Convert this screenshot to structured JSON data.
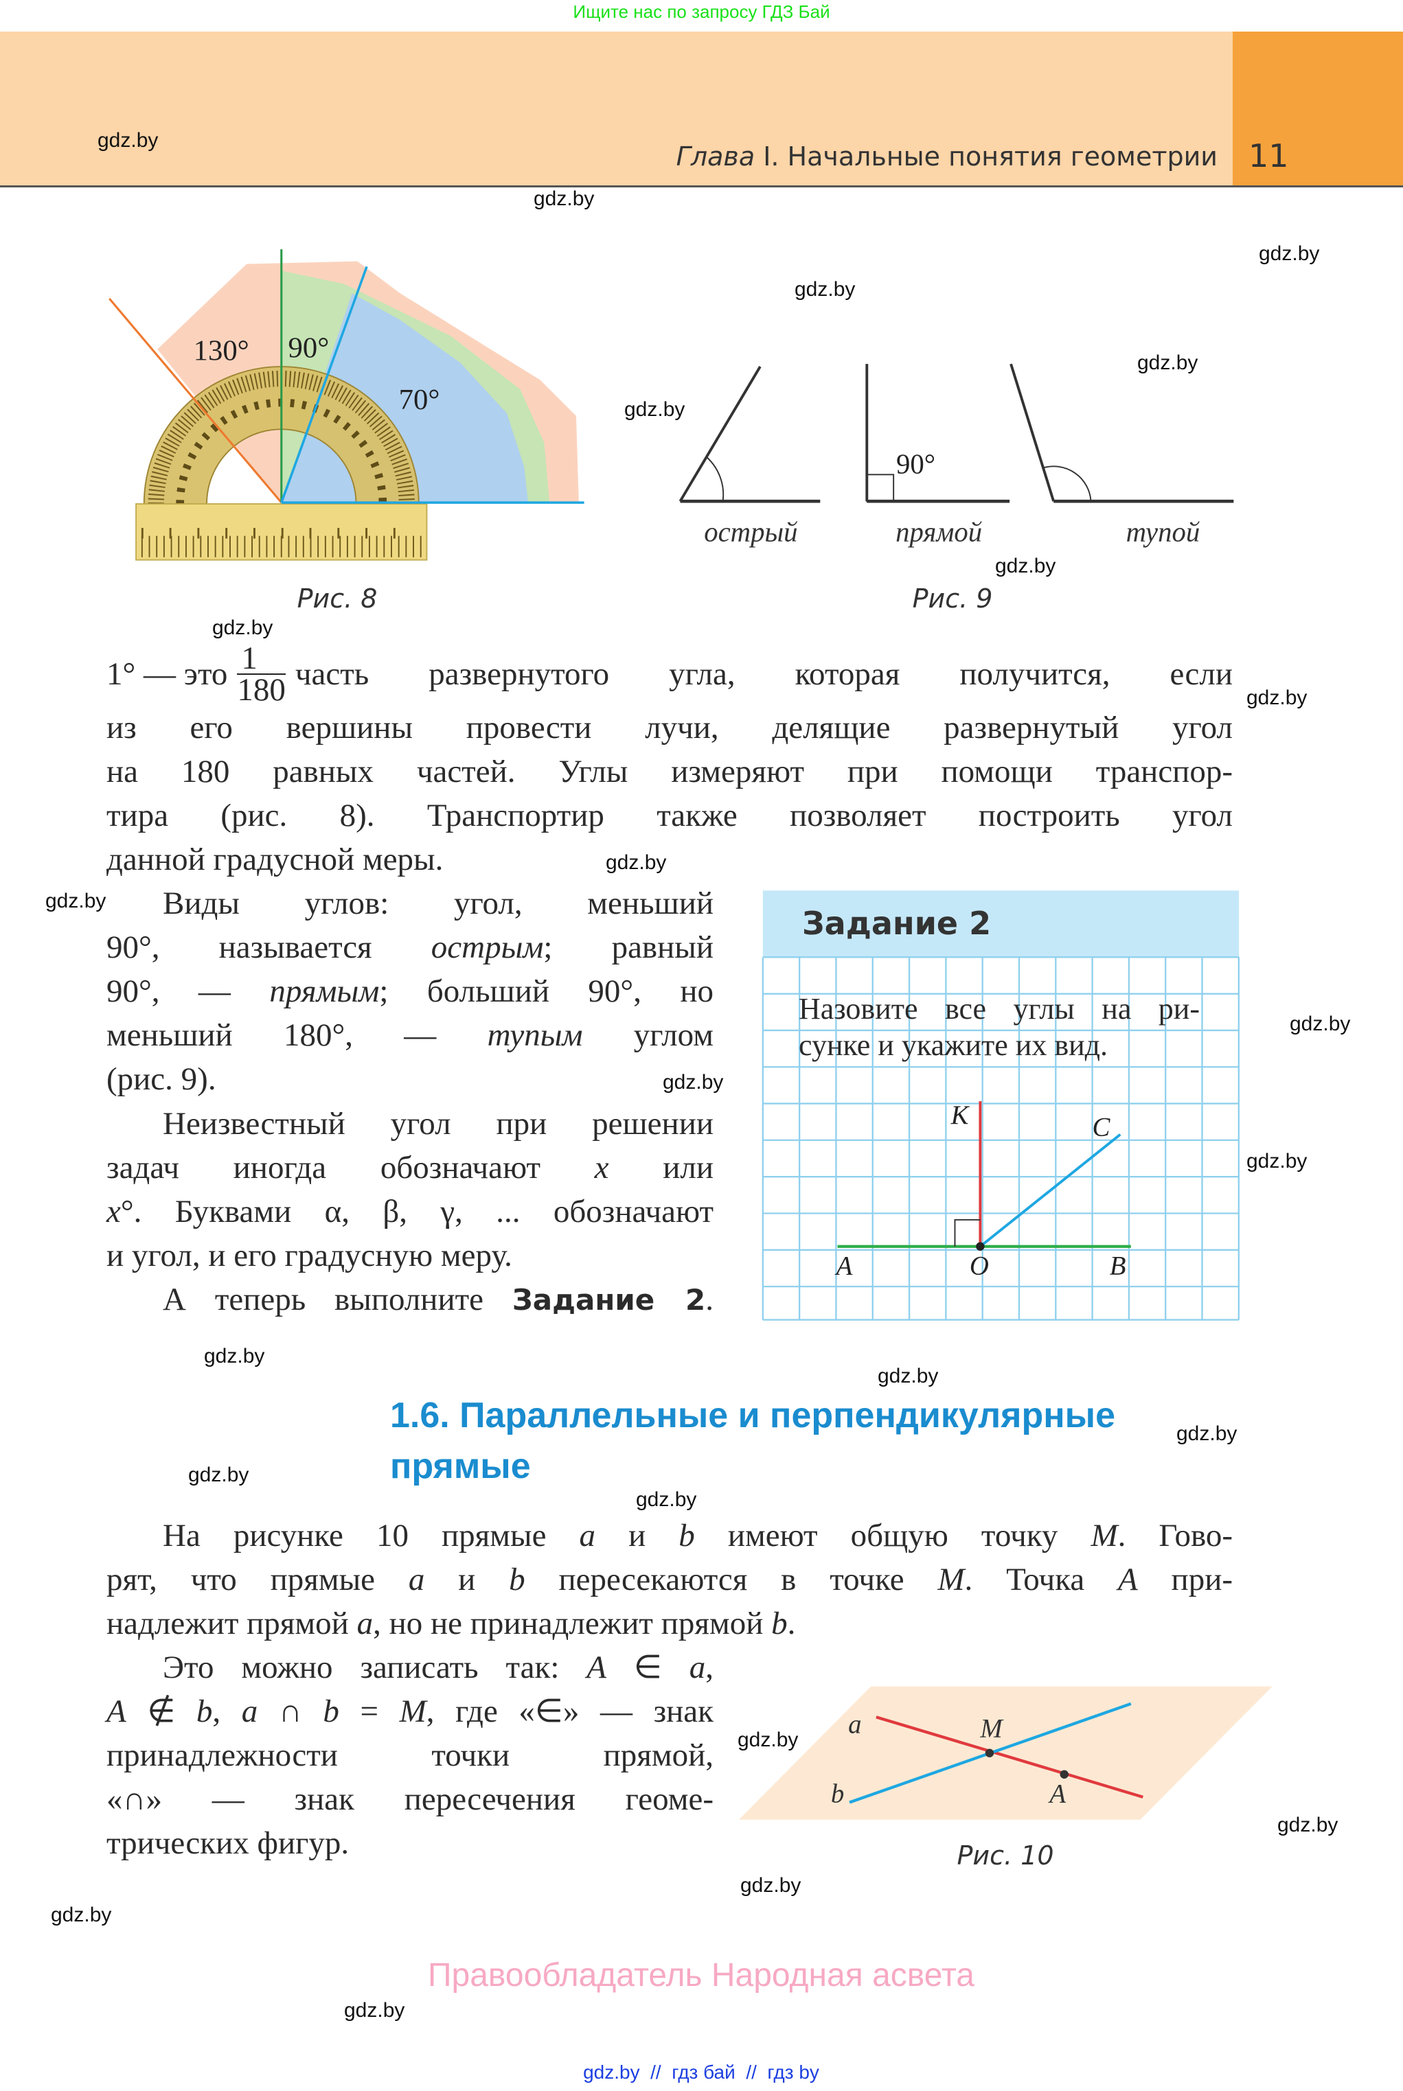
{
  "top_banner": "Ищите нас по запросу ГДЗ Бай",
  "header": {
    "chapter_prefix": "Глава",
    "chapter_title": " I. Начальные понятия геометрии",
    "page_number": "11"
  },
  "watermarks": [
    "gdz.by",
    "gdz.by",
    "gdz.by",
    "gdz.by",
    "gdz.by",
    "gdz.by",
    "gdz.by",
    "gdz.by",
    "gdz.by",
    "gdz.by",
    "gdz.by",
    "gdz.by",
    "gdz.by",
    "gdz.by",
    "gdz.by",
    "gdz.by",
    "gdz.by",
    "gdz.by",
    "gdz.by",
    "gdz.by",
    "gdz.by",
    "gdz.by",
    "gdz.by",
    "gdz.by"
  ],
  "fig8": {
    "angles": [
      "130°",
      "90°",
      "70°"
    ],
    "caption": "Рис. 8"
  },
  "fig9": {
    "labels": [
      "острый",
      "прямой",
      "тупой"
    ],
    "right_angle": "90°",
    "caption": "Рис. 9"
  },
  "paragraph1": {
    "lead": "1° — это",
    "fraction": {
      "num": "1",
      "den": "180"
    },
    "lead_rest": "часть развернутого угла, которая получится, если",
    "lines": [
      [
        "из его вершины провести лучи, делящие развернутый угол"
      ],
      [
        "на 180 равных частей. Углы измеряют при помощи транспор-"
      ],
      [
        "тира (рис. 8). Транспортир также позволяет построить угол"
      ],
      [
        "данной градусной меры."
      ]
    ]
  },
  "left_column": {
    "lines": [
      [
        "Виды углов: угол, меньший"
      ],
      [
        "90°, называется ",
        {
          "i": "острым"
        },
        "; равный"
      ],
      [
        "90°, — ",
        {
          "i": "прямым"
        },
        "; больший 90°, но"
      ],
      [
        "меньший 180°, — ",
        {
          "i": "тупым"
        },
        " углом"
      ],
      [
        "(рис. 9)."
      ],
      [
        "Неизвестный угол при решении"
      ],
      [
        "задач иногда обозначают ",
        {
          "i": "x"
        },
        " или"
      ],
      [
        {
          "i": "x"
        },
        "°. Буквами α, β, γ, ... обозначают"
      ],
      [
        "и угол, и его градусную меру."
      ],
      [
        "А теперь выполните ",
        {
          "b": "Задание 2"
        },
        "."
      ]
    ]
  },
  "task": {
    "title": "Задание 2",
    "lines": [
      "Назовите все углы на ри-",
      "сунке и укажите их вид."
    ],
    "points": {
      "K": "K",
      "C": "C",
      "A": "A",
      "O": "O",
      "B": "B"
    }
  },
  "section": {
    "title_line1": "1.6. Параллельные и перпендикулярные",
    "title_line2": "прямые"
  },
  "paragraph2": {
    "lines": [
      [
        "На рисунке 10 прямые ",
        {
          "i": "a"
        },
        " и ",
        {
          "i": "b"
        },
        " имеют общую точку ",
        {
          "i": "M"
        },
        ". Гово-"
      ],
      [
        "рят, что прямые ",
        {
          "i": "a"
        },
        " и ",
        {
          "i": "b"
        },
        " пересекаются в точке ",
        {
          "i": "M"
        },
        ". Точка ",
        {
          "i": "A"
        },
        " при-"
      ],
      [
        "надлежит прямой ",
        {
          "i": "a"
        },
        ", но не принадлежит прямой ",
        {
          "i": "b"
        },
        "."
      ]
    ]
  },
  "paragraph3": {
    "lines": [
      [
        "Это можно записать так: ",
        {
          "i": "A"
        },
        " ∈ ",
        {
          "i": "a"
        },
        ","
      ],
      [
        {
          "i": "A"
        },
        " ∉ ",
        {
          "i": "b"
        },
        ", ",
        {
          "i": "a"
        },
        " ∩ ",
        {
          "i": "b"
        },
        " = ",
        {
          "i": "M"
        },
        ", где «∈» — знак"
      ],
      [
        "принадлежности точки прямой,"
      ],
      [
        "«∩» — знак пересечения геоме-"
      ],
      [
        "трических фигур."
      ]
    ]
  },
  "fig10": {
    "labels": {
      "a": "a",
      "b": "b",
      "M": "M",
      "A": "A"
    },
    "caption": "Рис. 10"
  },
  "footer": {
    "rights": "Правообладатель Народная асвета",
    "links": "gdz.by  //  гдз бай  //  гдз by"
  },
  "colors": {
    "header_band": "#fcd5a8",
    "page_tab": "#f6a23c",
    "section_title": "#1a8ccf",
    "task_header": "#c5e8f8",
    "task_grid": "#8fd0ee",
    "line_red": "#e03a3e",
    "line_blue": "#1ea7e1",
    "line_green": "#2fae4a",
    "line_orange": "#ee7a30"
  }
}
